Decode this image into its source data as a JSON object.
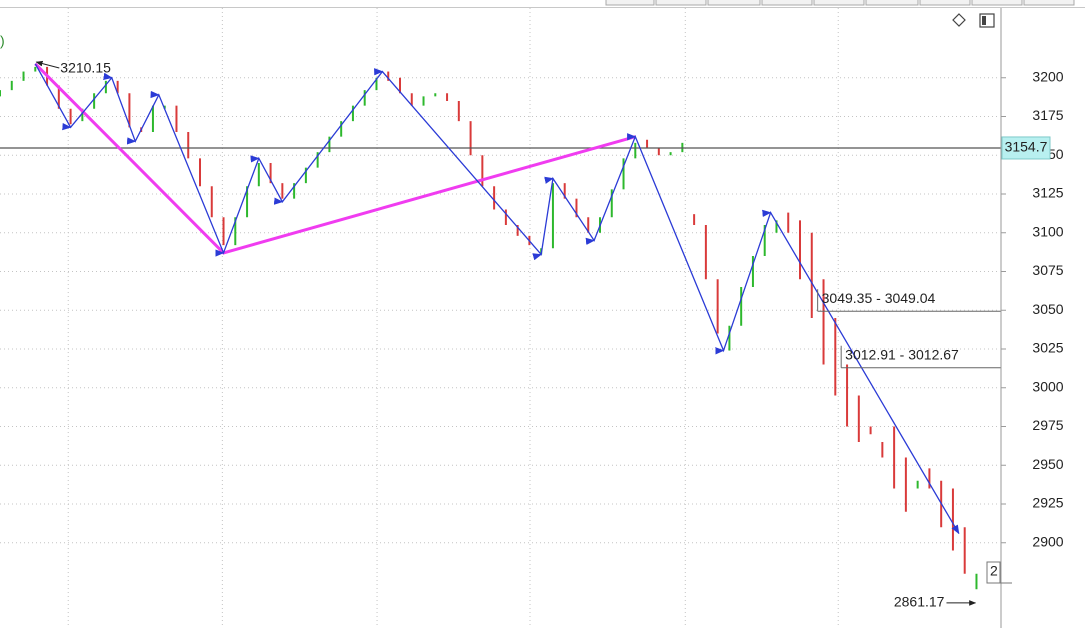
{
  "chart_data": {
    "type": "candlestick",
    "left_text": ")",
    "badge": "2",
    "xlim": [
      0,
      170
    ],
    "ylim": [
      2845,
      3245
    ],
    "yticks": [
      2900,
      2925,
      2950,
      2975,
      3000,
      3025,
      3050,
      3075,
      3100,
      3125,
      3150,
      3175,
      3200
    ],
    "grid": true,
    "xgrid": [
      11.6,
      37.8,
      64.1,
      90.1,
      116.5,
      142.5
    ],
    "bars": {
      "x": [
        0,
        2,
        4,
        6,
        8,
        10,
        12,
        14,
        16,
        18,
        20,
        22,
        24,
        26,
        28,
        30,
        32,
        34,
        36,
        38,
        40,
        42,
        44,
        46,
        48,
        50,
        52,
        54,
        56,
        58,
        60,
        62,
        64,
        66,
        68,
        70,
        72,
        74,
        76,
        78,
        80,
        82,
        84,
        86,
        88,
        90,
        92,
        94,
        96,
        98,
        100,
        102,
        104,
        106,
        108,
        110,
        112,
        114,
        116,
        118,
        120,
        122,
        124,
        126,
        128,
        130,
        132,
        134,
        136,
        138,
        140,
        142,
        144,
        146,
        148,
        150,
        152,
        154,
        156,
        158,
        160,
        162,
        164,
        166
      ],
      "open": [
        3188,
        3192,
        3198,
        3204,
        3207,
        3195,
        3180,
        3172,
        3180,
        3190,
        3198,
        3190,
        3168,
        3165,
        3180,
        3182,
        3165,
        3148,
        3130,
        3110,
        3092,
        3110,
        3130,
        3145,
        3132,
        3122,
        3132,
        3142,
        3152,
        3162,
        3172,
        3182,
        3192,
        3204,
        3200,
        3190,
        3182,
        3188,
        3190,
        3185,
        3172,
        3150,
        3130,
        3115,
        3105,
        3098,
        3086,
        3090,
        3132,
        3122,
        3110,
        3100,
        3110,
        3128,
        3148,
        3160,
        3155,
        3150,
        3152,
        3112,
        3105,
        3070,
        3024,
        3040,
        3065,
        3085,
        3100,
        3113,
        3108,
        3100,
        3070,
        3045,
        3015,
        2995,
        2975,
        2965,
        2975,
        2955,
        2935,
        2948,
        2940,
        2935,
        2910,
        2870
      ],
      "close": [
        3192,
        3198,
        3204,
        3207,
        3195,
        3180,
        3170,
        3180,
        3190,
        3198,
        3190,
        3168,
        3165,
        3182,
        3182,
        3165,
        3148,
        3130,
        3110,
        3092,
        3110,
        3130,
        3145,
        3132,
        3122,
        3132,
        3142,
        3152,
        3162,
        3172,
        3182,
        3192,
        3200,
        3198,
        3190,
        3182,
        3188,
        3190,
        3185,
        3172,
        3150,
        3130,
        3115,
        3105,
        3098,
        3092,
        3090,
        3132,
        3122,
        3110,
        3100,
        3110,
        3128,
        3148,
        3158,
        3155,
        3150,
        3152,
        3158,
        3105,
        3070,
        3035,
        3040,
        3065,
        3085,
        3105,
        3108,
        3100,
        3070,
        3045,
        3015,
        2995,
        2975,
        2965,
        2970,
        2955,
        2935,
        2920,
        2940,
        2935,
        2910,
        2895,
        2880,
        2880
      ],
      "up_color": "#2db82d",
      "down_color": "#d93a3a"
    },
    "zigzag": {
      "x": [
        6,
        12,
        19,
        23,
        27,
        38,
        44,
        48,
        65,
        92,
        94,
        101,
        108,
        123,
        131,
        163
      ],
      "values": [
        3209,
        3168,
        3200,
        3159,
        3189,
        3087,
        3148,
        3120,
        3204,
        3086,
        3135,
        3095,
        3162,
        3024,
        3113,
        2906
      ],
      "color": "#2b3bd6"
    },
    "trend": {
      "x": [
        6,
        38,
        108
      ],
      "values": [
        3209,
        3087,
        3162
      ],
      "color": "#f03cf0"
    },
    "level": {
      "value": 3154.7,
      "color": "#555555",
      "label_bg": "#b8f0f0"
    },
    "annotations": [
      {
        "label": "3210.15",
        "value": 3210.15,
        "x": 6,
        "side": "right"
      },
      {
        "label": "2861.17",
        "value": 2861.17,
        "x": 166,
        "side": "left"
      }
    ],
    "ranges": [
      {
        "label": "3049.35 - 3049.04",
        "values": [
          3049.35,
          3049.04
        ],
        "x": 139
      },
      {
        "label": "3012.91 - 3012.67",
        "values": [
          3012.91,
          3012.67
        ],
        "x": 143
      }
    ]
  }
}
